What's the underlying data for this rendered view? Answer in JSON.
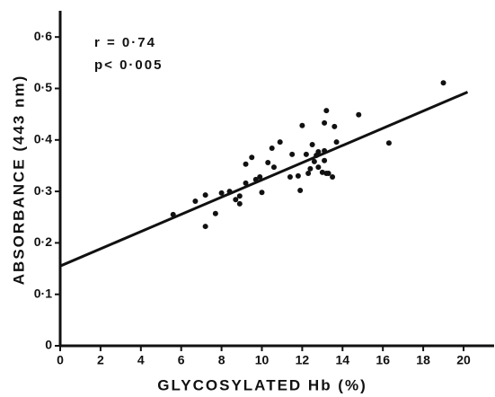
{
  "chart_data": {
    "type": "scatter",
    "annotations": [
      "r = 0·74",
      "p< 0·005"
    ],
    "x_label": "GLYCOSYLATED Hb (%)",
    "y_label": "ABSORBANCE (443 nm)",
    "color": "#111111",
    "x": [
      5.6,
      6.7,
      7.2,
      7.2,
      7.7,
      8.0,
      8.4,
      8.7,
      8.9,
      8.9,
      9.2,
      9.2,
      9.5,
      9.7,
      9.9,
      10.0,
      10.3,
      10.5,
      10.6,
      10.9,
      11.4,
      11.5,
      11.8,
      11.9,
      12.0,
      12.2,
      12.3,
      12.4,
      12.5,
      12.6,
      12.7,
      12.8,
      12.8,
      13.0,
      13.1,
      13.1,
      13.1,
      13.2,
      13.2,
      13.3,
      13.5,
      13.6,
      13.7,
      14.8,
      16.3,
      19.0
    ],
    "values": [
      0.255,
      0.281,
      0.293,
      0.232,
      0.257,
      0.297,
      0.3,
      0.284,
      0.291,
      0.276,
      0.316,
      0.353,
      0.366,
      0.323,
      0.328,
      0.298,
      0.356,
      0.384,
      0.347,
      0.396,
      0.328,
      0.372,
      0.33,
      0.302,
      0.428,
      0.372,
      0.335,
      0.344,
      0.391,
      0.358,
      0.37,
      0.347,
      0.377,
      0.337,
      0.36,
      0.379,
      0.433,
      0.335,
      0.457,
      0.335,
      0.328,
      0.426,
      0.396,
      0.449,
      0.394,
      0.511
    ],
    "regression": {
      "x": [
        0,
        20.2
      ],
      "y": [
        0.155,
        0.493
      ]
    },
    "xlim": [
      0,
      21.5
    ],
    "ylim": [
      0,
      0.65
    ],
    "xticks": [
      0,
      2,
      4,
      6,
      8,
      10,
      12,
      14,
      16,
      18,
      20
    ],
    "yticks": [
      0,
      {
        "value": 0.1,
        "label": "0·1"
      },
      {
        "value": 0.2,
        "label": "0·2"
      },
      {
        "value": 0.3,
        "label": "0·3"
      },
      {
        "value": 0.4,
        "label": "0·4"
      },
      {
        "value": 0.5,
        "label": "0·5"
      },
      {
        "value": 0.6,
        "label": "0·6"
      }
    ]
  }
}
